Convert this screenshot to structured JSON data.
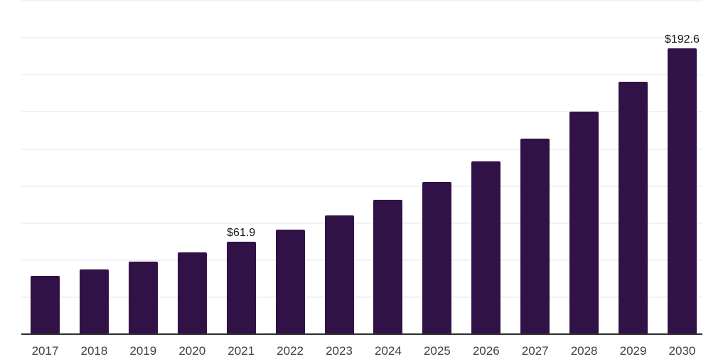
{
  "chart_data": {
    "type": "bar",
    "title": "",
    "xlabel": "",
    "ylabel": "",
    "categories": [
      "2017",
      "2018",
      "2019",
      "2020",
      "2021",
      "2022",
      "2023",
      "2024",
      "2025",
      "2026",
      "2027",
      "2028",
      "2029",
      "2030"
    ],
    "values": [
      38.9,
      43.0,
      48.5,
      54.9,
      61.9,
      70.0,
      79.8,
      90.3,
      102.4,
      116.1,
      131.6,
      149.8,
      169.9,
      192.6
    ],
    "point_labels": [
      "",
      "",
      "",
      "",
      "$61.9",
      "",
      "",
      "",
      "",
      "",
      "",
      "",
      "",
      "$192.6"
    ],
    "ylim": [
      0,
      225
    ],
    "gridline_step": 25,
    "grid": "on",
    "legend": "none",
    "y_axis_tick_labels_visible": false,
    "colors": {
      "bar": "#311247",
      "grid_line": "#f2f2f4",
      "axis_line": "#2e2e2e",
      "tick_label": "#3f3f3f",
      "value_label": "#141414",
      "background": "#ffffff"
    }
  }
}
